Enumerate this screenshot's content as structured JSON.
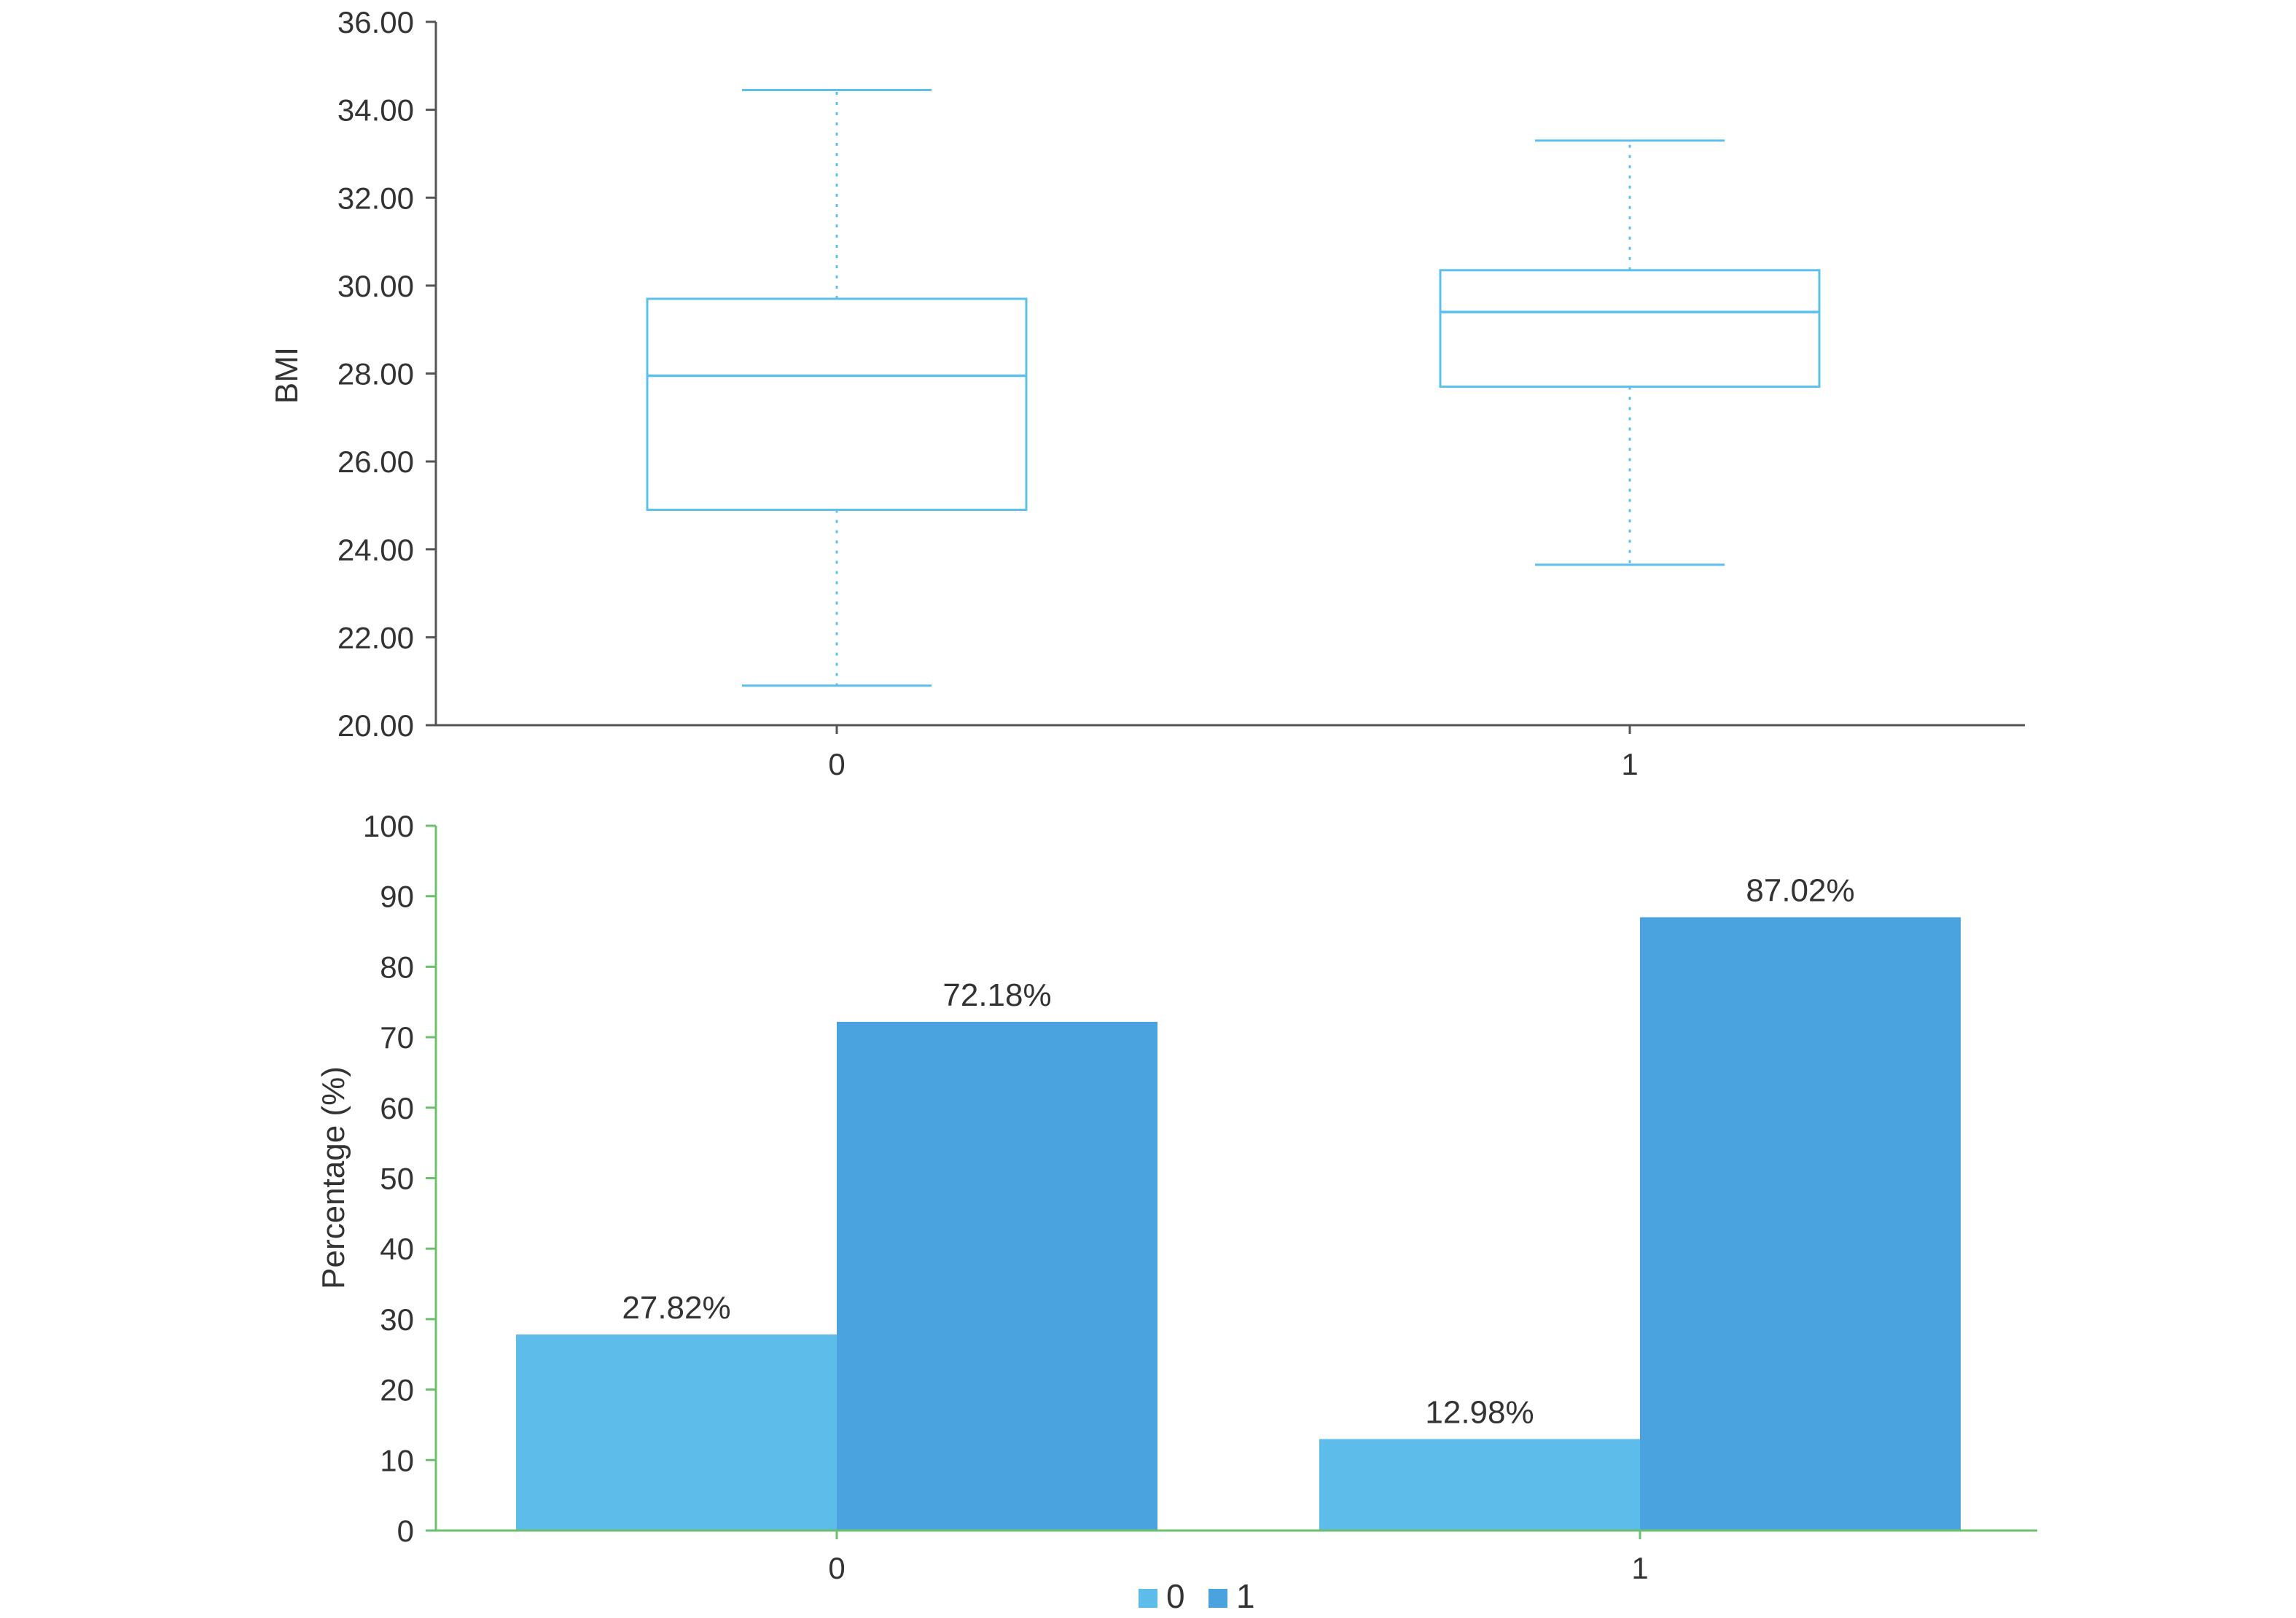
{
  "colors": {
    "box": "#5bc0eb",
    "axis_top": "#555555",
    "axis_bottom": "#6cc06c",
    "series0": "#5dbcea",
    "series1": "#4aa3df"
  },
  "chart_data": [
    {
      "type": "box",
      "title": "",
      "xlabel": "",
      "ylabel": "BMI",
      "ylim": [
        20,
        36
      ],
      "yticks": [
        "20.00",
        "22.00",
        "24.00",
        "26.00",
        "28.00",
        "30.00",
        "32.00",
        "34.00",
        "36.00"
      ],
      "categories": [
        "0",
        "1"
      ],
      "boxes": [
        {
          "category": "0",
          "min": 20.9,
          "q1": 24.9,
          "median": 27.95,
          "q3": 29.7,
          "max": 34.45
        },
        {
          "category": "1",
          "min": 23.65,
          "q1": 27.7,
          "median": 29.4,
          "q3": 30.35,
          "max": 33.3
        }
      ]
    },
    {
      "type": "bar",
      "title": "",
      "xlabel": "",
      "ylabel": "Percentage (%)",
      "ylim": [
        0,
        100
      ],
      "yticks": [
        "0",
        "10",
        "20",
        "30",
        "40",
        "50",
        "60",
        "70",
        "80",
        "90",
        "100"
      ],
      "categories": [
        "0",
        "1"
      ],
      "series": [
        {
          "name": "0",
          "values": [
            27.82,
            12.98
          ],
          "labels": [
            "27.82%",
            "12.98%"
          ]
        },
        {
          "name": "1",
          "values": [
            72.18,
            87.02
          ],
          "labels": [
            "72.18%",
            "87.02%"
          ]
        }
      ],
      "legend": "bottom-center"
    }
  ]
}
